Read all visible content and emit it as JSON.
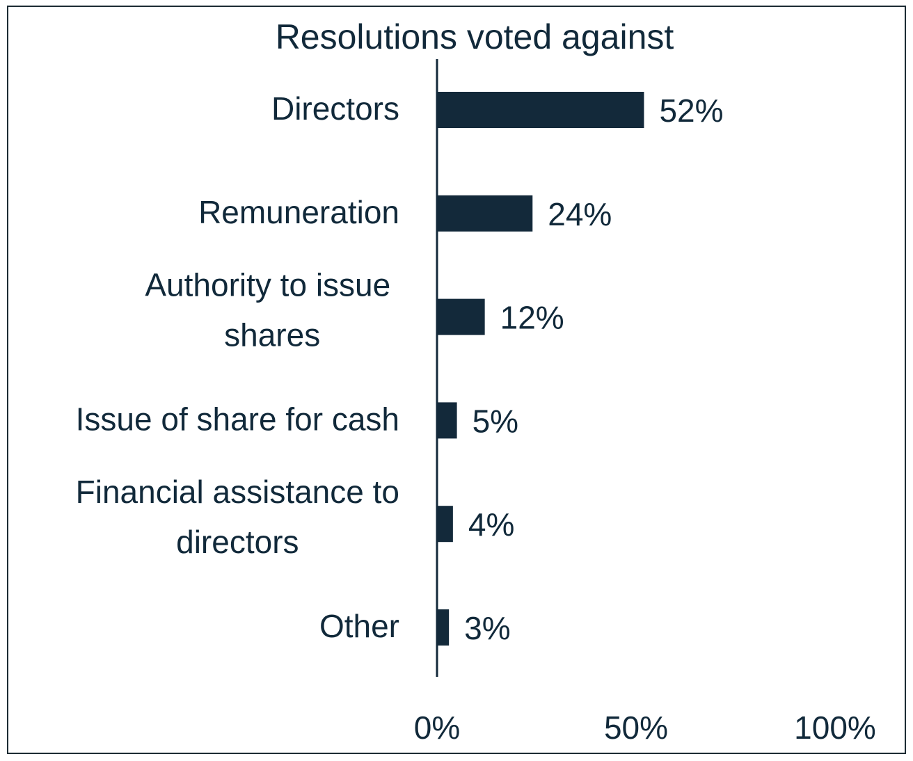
{
  "chart_data": {
    "type": "bar",
    "orientation": "horizontal",
    "title": "Resolutions voted against",
    "categories": [
      [
        "Directors"
      ],
      [
        "Remuneration"
      ],
      [
        "Authority to issue ",
        "shares"
      ],
      [
        "Issue of share for cash"
      ],
      [
        "Financial assistance to",
        "directors"
      ],
      [
        "Other"
      ]
    ],
    "values": [
      52,
      24,
      12,
      5,
      4,
      3
    ],
    "value_labels": [
      "52%",
      "24%",
      "12%",
      "5%",
      "4%",
      "3%"
    ],
    "xlim": [
      0,
      100
    ],
    "x_ticks": [
      0,
      50,
      100
    ],
    "x_tick_labels": [
      "0%",
      "50%",
      "100%"
    ],
    "bar_color": "#13293a",
    "text_color": "#11293a",
    "axis_color": "#13293a",
    "grid": false,
    "legend": "none"
  }
}
